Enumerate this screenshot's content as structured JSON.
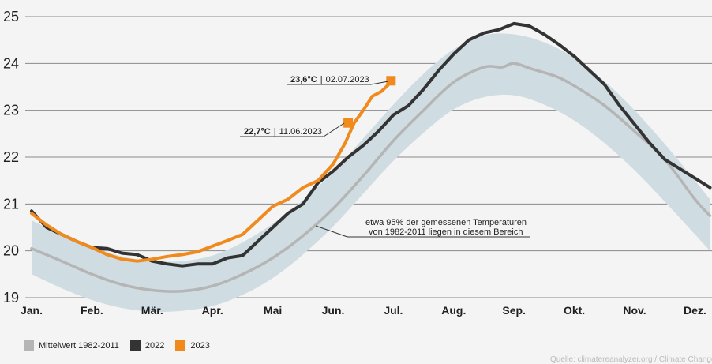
{
  "chart_data": {
    "type": "line",
    "ylim": [
      19,
      25
    ],
    "yticks": [
      "19",
      "20",
      "21",
      "22",
      "23",
      "24",
      "25"
    ],
    "xmonths": [
      "Jan.",
      "Feb.",
      "Mär.",
      "Apr.",
      "Mai",
      "Jun.",
      "Jul.",
      "Aug.",
      "Sep.",
      "Okt.",
      "Nov.",
      "Dez."
    ],
    "xlim": [
      0,
      11.25
    ],
    "grid": "horizontal",
    "legend_position": "bottom-left",
    "series": [
      {
        "name": "Mittelwert 1982-2011",
        "color": "#b5b5b5",
        "x": [
          0,
          0.5,
          1,
          1.5,
          2,
          2.5,
          3,
          3.5,
          4,
          4.5,
          5,
          5.5,
          6,
          6.5,
          7,
          7.5,
          7.8,
          8,
          8.3,
          8.7,
          9,
          9.5,
          10,
          10.5,
          11,
          11.25
        ],
        "y": [
          20.05,
          19.78,
          19.5,
          19.28,
          19.16,
          19.14,
          19.25,
          19.5,
          19.85,
          20.32,
          20.9,
          21.6,
          22.35,
          23.0,
          23.6,
          23.92,
          23.92,
          24.0,
          23.88,
          23.72,
          23.52,
          23.1,
          22.55,
          21.95,
          21.1,
          20.75
        ]
      },
      {
        "name": "2022",
        "color": "#333333",
        "x": [
          0,
          0.25,
          0.5,
          0.75,
          1,
          1.25,
          1.5,
          1.75,
          2,
          2.25,
          2.5,
          2.75,
          3,
          3.25,
          3.5,
          3.75,
          4,
          4.25,
          4.5,
          4.75,
          5,
          5.25,
          5.5,
          5.75,
          6,
          6.25,
          6.5,
          6.75,
          7,
          7.25,
          7.5,
          7.75,
          8,
          8.25,
          8.5,
          8.75,
          9,
          9.25,
          9.5,
          9.75,
          10,
          10.25,
          10.5,
          10.75,
          11,
          11.25
        ],
        "y": [
          20.85,
          20.5,
          20.35,
          20.2,
          20.07,
          20.05,
          19.95,
          19.92,
          19.78,
          19.72,
          19.68,
          19.72,
          19.72,
          19.85,
          19.9,
          20.2,
          20.5,
          20.8,
          21.0,
          21.45,
          21.7,
          22.0,
          22.25,
          22.55,
          22.9,
          23.1,
          23.45,
          23.85,
          24.2,
          24.5,
          24.65,
          24.72,
          24.85,
          24.8,
          24.62,
          24.4,
          24.15,
          23.85,
          23.55,
          23.1,
          22.7,
          22.3,
          21.95,
          21.75,
          21.55,
          21.35
        ]
      },
      {
        "name": "2023",
        "color": "#f08a1c",
        "x": [
          0,
          0.25,
          0.5,
          0.75,
          1,
          1.25,
          1.5,
          1.75,
          2,
          2.25,
          2.5,
          2.75,
          3,
          3.25,
          3.5,
          3.75,
          4,
          4.25,
          4.5,
          4.75,
          5,
          5.2,
          5.35,
          5.5,
          5.65,
          5.8,
          5.96
        ],
        "y": [
          20.8,
          20.55,
          20.35,
          20.2,
          20.07,
          19.92,
          19.82,
          19.78,
          19.82,
          19.88,
          19.92,
          19.98,
          20.1,
          20.22,
          20.35,
          20.65,
          20.95,
          21.1,
          21.35,
          21.5,
          21.85,
          22.3,
          22.73,
          23.0,
          23.3,
          23.4,
          23.6
        ]
      }
    ],
    "band": {
      "label": "etwa 95% der gemessenen Temperaturen von 1982-2011 liegen in diesem Bereich",
      "x": [
        0,
        0.5,
        1,
        1.5,
        2,
        2.5,
        3,
        3.5,
        4,
        4.5,
        5,
        5.5,
        6,
        6.5,
        7,
        7.5,
        8,
        8.5,
        9,
        9.5,
        10,
        10.5,
        11,
        11.25
      ],
      "upper": [
        20.65,
        20.35,
        20.08,
        19.88,
        19.78,
        19.78,
        19.9,
        20.18,
        20.58,
        21.08,
        21.68,
        22.4,
        23.12,
        23.78,
        24.3,
        24.6,
        24.62,
        24.45,
        24.12,
        23.62,
        23.0,
        22.28,
        21.5,
        21.1
      ],
      "lower": [
        19.5,
        19.2,
        18.95,
        18.78,
        18.7,
        18.72,
        18.82,
        19.06,
        19.42,
        19.92,
        20.52,
        21.22,
        21.92,
        22.52,
        23.02,
        23.28,
        23.32,
        23.12,
        22.78,
        22.3,
        21.72,
        21.05,
        20.35,
        20.0
      ]
    },
    "annotations": [
      {
        "value_label": "23,6°C",
        "date_label": "02.07.2023",
        "x": 5.96,
        "y": 23.63
      },
      {
        "value_label": "22,7°C",
        "date_label": "11.06.2023",
        "x": 5.25,
        "y": 22.73
      }
    ],
    "band_annotation": {
      "line1": "etwa 95% der gemessenen Temperaturen",
      "line2": "von 1982-2011 liegen in diesem Bereich"
    }
  },
  "legend": {
    "items": [
      {
        "label": "Mittelwert 1982-2011",
        "color": "#b5b5b5"
      },
      {
        "label": "2022",
        "color": "#333333"
      },
      {
        "label": "2023",
        "color": "#f08a1c"
      }
    ]
  },
  "source": "Quelle: climatereanalyzer.org / Climate Change Institute"
}
